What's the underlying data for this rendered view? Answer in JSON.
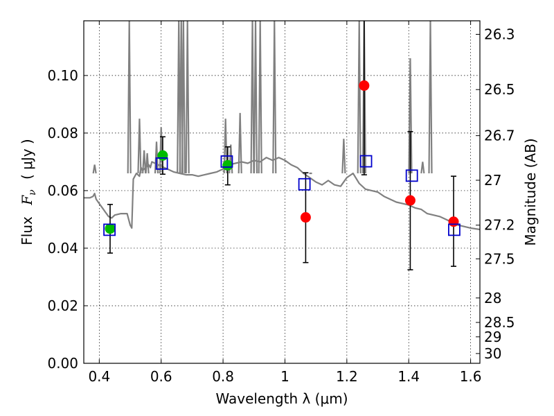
{
  "chart_data": {
    "type": "scatter",
    "xlabel": "Wavelength  λ (μm)",
    "ylabel": "Flux  F_ν  ( μJy )",
    "ylabel_parts": {
      "prefix": "Flux",
      "symbol": "F",
      "subscript": "ν",
      "unit": "( μJy )"
    },
    "y2label": "Magnitude (AB)",
    "xlim": [
      0.35,
      1.63
    ],
    "ylim": [
      0.0,
      0.119
    ],
    "grid": true,
    "x_ticks": [
      0.4,
      0.6,
      0.8,
      1.0,
      1.2,
      1.4,
      1.6
    ],
    "x_tick_labels": [
      "0.4",
      "0.6",
      "0.8",
      "1",
      "1.2",
      "1.4",
      "1.6"
    ],
    "y_ticks": [
      0.0,
      0.02,
      0.04,
      0.06,
      0.08,
      0.1
    ],
    "y_tick_labels": [
      "0.00",
      "0.02",
      "0.04",
      "0.06",
      "0.08",
      "0.10"
    ],
    "y2_ticks": [
      {
        "flux": 0.1143,
        "label": "26.3"
      },
      {
        "flux": 0.0951,
        "label": "26.5"
      },
      {
        "flux": 0.0791,
        "label": "26.7"
      },
      {
        "flux": 0.0636,
        "label": "27"
      },
      {
        "flux": 0.048,
        "label": "27.2"
      },
      {
        "flux": 0.0363,
        "label": "27.5"
      },
      {
        "flux": 0.0227,
        "label": "28"
      },
      {
        "flux": 0.0142,
        "label": "28.5"
      },
      {
        "flux": 0.0092,
        "label": "29"
      },
      {
        "flux": 0.0034,
        "label": "30"
      }
    ],
    "series": [
      {
        "kind": "line",
        "color": "#808080",
        "x": [
          0.35,
          0.37,
          0.38,
          0.385,
          0.39,
          0.4,
          0.41,
          0.42,
          0.43,
          0.44,
          0.45,
          0.47,
          0.49,
          0.5,
          0.505,
          0.51,
          0.52,
          0.53,
          0.535,
          0.54,
          0.55,
          0.56,
          0.565,
          0.57,
          0.58,
          0.59,
          0.6,
          0.61,
          0.62,
          0.64,
          0.66,
          0.68,
          0.7,
          0.72,
          0.74,
          0.76,
          0.78,
          0.8,
          0.81,
          0.82,
          0.84,
          0.86,
          0.88,
          0.9,
          0.92,
          0.94,
          0.96,
          0.98,
          1.0,
          1.02,
          1.04,
          1.06,
          1.08,
          1.1,
          1.12,
          1.14,
          1.16,
          1.18,
          1.2,
          1.22,
          1.24,
          1.26,
          1.28,
          1.3,
          1.32,
          1.34,
          1.36,
          1.38,
          1.4,
          1.42,
          1.44,
          1.46,
          1.48,
          1.5,
          1.52,
          1.54,
          1.56,
          1.58,
          1.6,
          1.63
        ],
        "y": [
          0.0575,
          0.0575,
          0.058,
          0.059,
          0.057,
          0.0555,
          0.054,
          0.0525,
          0.051,
          0.0505,
          0.0515,
          0.052,
          0.052,
          0.048,
          0.047,
          0.064,
          0.066,
          0.065,
          0.068,
          0.067,
          0.068,
          0.069,
          0.068,
          0.07,
          0.0695,
          0.069,
          0.0685,
          0.068,
          0.0675,
          0.0665,
          0.066,
          0.0655,
          0.0655,
          0.065,
          0.0655,
          0.066,
          0.0665,
          0.0675,
          0.068,
          0.069,
          0.0695,
          0.07,
          0.0695,
          0.0705,
          0.07,
          0.0715,
          0.0705,
          0.0715,
          0.0705,
          0.069,
          0.068,
          0.066,
          0.0645,
          0.063,
          0.062,
          0.0635,
          0.062,
          0.0615,
          0.0645,
          0.066,
          0.0625,
          0.0605,
          0.06,
          0.0595,
          0.058,
          0.057,
          0.056,
          0.0555,
          0.055,
          0.054,
          0.0535,
          0.052,
          0.0515,
          0.051,
          0.05,
          0.049,
          0.048,
          0.0475,
          0.047,
          0.0465
        ]
      },
      {
        "kind": "line-spikes",
        "color": "#808080",
        "x": [
          0.385,
          0.497,
          0.53,
          0.545,
          0.555,
          0.585,
          0.6,
          0.657,
          0.665,
          0.672,
          0.685,
          0.808,
          0.825,
          0.855,
          0.895,
          0.905,
          0.92,
          0.966,
          1.083,
          1.19,
          1.24,
          1.256,
          1.405,
          1.445,
          1.47
        ],
        "y": [
          0.069,
          0.119,
          0.085,
          0.074,
          0.073,
          0.077,
          0.082,
          0.119,
          0.119,
          0.119,
          0.119,
          0.085,
          0.076,
          0.087,
          0.119,
          0.119,
          0.119,
          0.119,
          0.066,
          0.078,
          0.119,
          0.119,
          0.106,
          0.07,
          0.119
        ]
      },
      {
        "kind": "points",
        "marker": "circle",
        "color": "#00bb00",
        "x": [
          0.435,
          0.605,
          0.815
        ],
        "y": [
          0.0468,
          0.0722,
          0.0688
        ],
        "yerr_low": [
          0.0383,
          0.0657,
          0.062
        ],
        "yerr_high": [
          0.0552,
          0.0787,
          0.0752
        ]
      },
      {
        "kind": "points",
        "marker": "circle",
        "color": "#ff0000",
        "x": [
          1.067,
          1.256,
          1.405,
          1.545
        ],
        "y": [
          0.0507,
          0.0965,
          0.0566,
          0.0492
        ],
        "yerr_low": [
          0.035,
          0.0655,
          0.0325,
          0.0337
        ],
        "yerr_high": [
          0.0662,
          0.119,
          0.0805,
          0.065
        ]
      },
      {
        "kind": "points",
        "marker": "open-square",
        "color": "#0000cc",
        "x": [
          0.433,
          0.602,
          0.812,
          1.063,
          1.262,
          1.41,
          1.547
        ],
        "y": [
          0.0464,
          0.0694,
          0.0701,
          0.0622,
          0.0702,
          0.0652,
          0.0464
        ]
      }
    ]
  }
}
